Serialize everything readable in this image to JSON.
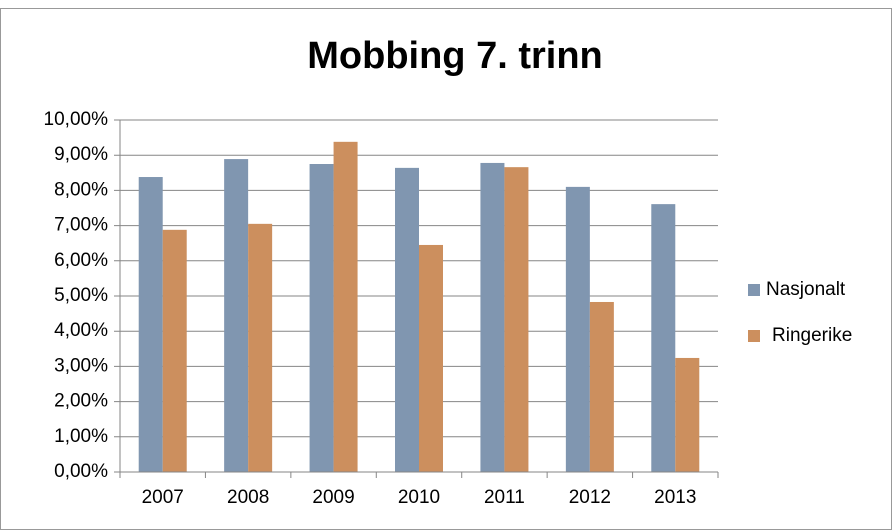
{
  "chart_data": {
    "type": "bar",
    "title": "Mobbing 7. trinn",
    "categories": [
      "2007",
      "2008",
      "2009",
      "2010",
      "2011",
      "2012",
      "2013"
    ],
    "series": [
      {
        "name": "Nasjonalt",
        "color": "#8096b0",
        "values": [
          8.38,
          8.89,
          8.75,
          8.64,
          8.78,
          8.1,
          7.61
        ]
      },
      {
        "name": "Ringerike",
        "color": "#cc8f5e",
        "values": [
          6.88,
          7.05,
          9.38,
          6.45,
          8.66,
          4.83,
          3.24
        ]
      }
    ],
    "ylim": [
      0,
      10
    ],
    "yticks": [
      {
        "value": 0,
        "label": "0,00%"
      },
      {
        "value": 1,
        "label": "1,00%"
      },
      {
        "value": 2,
        "label": "2,00%"
      },
      {
        "value": 3,
        "label": "3,00%"
      },
      {
        "value": 4,
        "label": "4,00%"
      },
      {
        "value": 5,
        "label": "5,00%"
      },
      {
        "value": 6,
        "label": "6,00%"
      },
      {
        "value": 7,
        "label": "7,00%"
      },
      {
        "value": 8,
        "label": "8,00%"
      },
      {
        "value": 9,
        "label": "9,00%"
      },
      {
        "value": 10,
        "label": "10,00%"
      }
    ],
    "grid": true,
    "legend": "right"
  }
}
